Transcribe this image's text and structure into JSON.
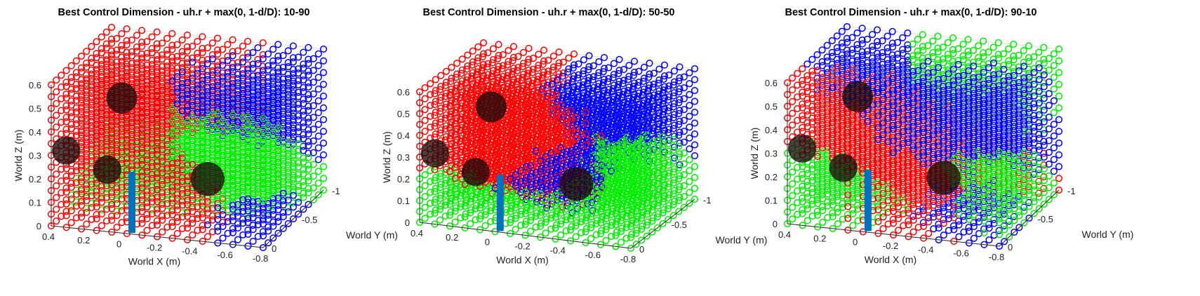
{
  "chart_data": [
    {
      "type": "scatter3d",
      "title": "Best Control Dimension - uh.r + max(0, 1-d/D): 10-90",
      "xlabel": "World X (m)",
      "ylabel": "World Y (m)",
      "zlabel": "World Z (m)",
      "xlim": [
        -0.8,
        0.4
      ],
      "ylim": [
        -1,
        0
      ],
      "zlim": [
        0,
        0.6
      ],
      "xticks": [
        "0.4",
        "0.2",
        "0",
        "-0.2",
        "-0.4",
        "-0.6",
        "-0.8"
      ],
      "yticks": [
        "0",
        "-0.5",
        "-1"
      ],
      "zticks": [
        "0",
        "0.1",
        "0.2",
        "0.3",
        "0.4",
        "0.5",
        "0.6"
      ],
      "grid": true,
      "grid_points": {
        "nx": 15,
        "ny": 13,
        "nz": 13
      },
      "series": [
        {
          "name": "",
          "color": "#ff0000"
        },
        {
          "name": "",
          "color": "#00ee00"
        },
        {
          "name": "",
          "color": "#0000ff"
        }
      ],
      "obstacles": [
        {
          "x": 0.12,
          "y": -0.35,
          "z": 0.48,
          "r": 0.055
        },
        {
          "x": 0.35,
          "y": -0.1,
          "z": 0.3,
          "r": 0.05
        },
        {
          "x": 0.1,
          "y": -0.05,
          "z": 0.25,
          "r": 0.05
        },
        {
          "x": -0.4,
          "y": -0.25,
          "z": 0.2,
          "r": 0.06
        }
      ],
      "pole": {
        "x": -0.05,
        "y": -0.02,
        "z_from": 0,
        "z_to": 0.26,
        "color": "#0072bd"
      }
    },
    {
      "type": "scatter3d",
      "title": "Best Control Dimension - uh.r + max(0, 1-d/D): 50-50",
      "xlabel": "World X (m)",
      "ylabel": "World Y (m)",
      "zlabel": "World Z (m)",
      "xlim": [
        -0.8,
        0.4
      ],
      "ylim": [
        -1,
        0
      ],
      "zlim": [
        0,
        0.6
      ],
      "xticks": [
        "0.4",
        "0.2",
        "0",
        "-0.2",
        "-0.4",
        "-0.6",
        "-0.8"
      ],
      "yticks": [
        "0",
        "-0.5",
        "-1"
      ],
      "zticks": [
        "0",
        "0.1",
        "0.2",
        "0.3",
        "0.4",
        "0.5",
        "0.6"
      ],
      "grid": true,
      "grid_points": {
        "nx": 15,
        "ny": 13,
        "nz": 13
      },
      "series": [
        {
          "name": "",
          "color": "#ff0000"
        },
        {
          "name": "",
          "color": "#00ee00"
        },
        {
          "name": "",
          "color": "#0000ff"
        }
      ],
      "obstacles": [
        {
          "x": 0.12,
          "y": -0.35,
          "z": 0.48,
          "r": 0.055
        },
        {
          "x": 0.35,
          "y": -0.1,
          "z": 0.3,
          "r": 0.05
        },
        {
          "x": 0.1,
          "y": -0.05,
          "z": 0.25,
          "r": 0.05
        },
        {
          "x": -0.4,
          "y": -0.25,
          "z": 0.2,
          "r": 0.06
        }
      ],
      "pole": {
        "x": -0.05,
        "y": -0.02,
        "z_from": 0,
        "z_to": 0.26,
        "color": "#0072bd"
      }
    },
    {
      "type": "scatter3d",
      "title": "Best Control Dimension - uh.r + max(0, 1-d/D): 90-10",
      "xlabel": "World X (m)",
      "ylabel": "World Y (m)",
      "zlabel": "World Z (m)",
      "xlim": [
        -0.8,
        0.4
      ],
      "ylim": [
        -1,
        0
      ],
      "zlim": [
        0,
        0.6
      ],
      "xticks": [
        "0.4",
        "0.2",
        "0",
        "-0.2",
        "-0.4",
        "-0.6",
        "-0.8"
      ],
      "yticks": [
        "0",
        "-0.5",
        "-1"
      ],
      "zticks": [
        "0",
        "0.1",
        "0.2",
        "0.3",
        "0.4",
        "0.5",
        "0.6"
      ],
      "grid": true,
      "grid_points": {
        "nx": 15,
        "ny": 13,
        "nz": 13
      },
      "series": [
        {
          "name": "",
          "color": "#ff0000"
        },
        {
          "name": "",
          "color": "#00ee00"
        },
        {
          "name": "",
          "color": "#0000ff"
        }
      ],
      "obstacles": [
        {
          "x": 0.12,
          "y": -0.35,
          "z": 0.48,
          "r": 0.055
        },
        {
          "x": 0.35,
          "y": -0.1,
          "z": 0.3,
          "r": 0.05
        },
        {
          "x": 0.1,
          "y": -0.05,
          "z": 0.25,
          "r": 0.05
        },
        {
          "x": -0.4,
          "y": -0.25,
          "z": 0.2,
          "r": 0.06
        }
      ],
      "pole": {
        "x": -0.05,
        "y": -0.02,
        "z_from": 0,
        "z_to": 0.26,
        "color": "#0072bd"
      }
    }
  ]
}
